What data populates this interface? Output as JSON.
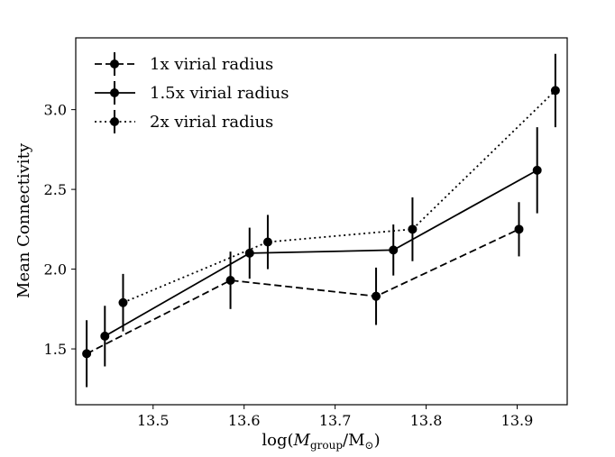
{
  "chart_data": {
    "type": "line",
    "title": "",
    "xlabel_parts": {
      "prefix": "log(",
      "var": "M",
      "sub": "group",
      "slash": "/M",
      "sun": "⊙",
      "suffix": ")"
    },
    "ylabel": "Mean Connectivity",
    "xlim": [
      13.415,
      13.955
    ],
    "ylim": [
      1.15,
      3.45
    ],
    "xticks": [
      13.5,
      13.6,
      13.7,
      13.8,
      13.9
    ],
    "xtick_labels": [
      "13.5",
      "13.6",
      "13.7",
      "13.8",
      "13.9"
    ],
    "yticks": [
      1.5,
      2.0,
      2.5,
      3.0
    ],
    "ytick_labels": [
      "1.5",
      "2.0",
      "2.5",
      "3.0"
    ],
    "legend_position": "top-left",
    "series": [
      {
        "name": "1x virial radius",
        "linestyle": "dashed",
        "x": [
          13.427,
          13.585,
          13.745,
          13.902
        ],
        "y": [
          1.47,
          1.93,
          1.83,
          2.25
        ],
        "yerr": [
          0.21,
          0.18,
          0.18,
          0.17
        ]
      },
      {
        "name": "1.5x virial radius",
        "linestyle": "solid",
        "x": [
          13.447,
          13.606,
          13.764,
          13.922
        ],
        "y": [
          1.58,
          2.1,
          2.12,
          2.62
        ],
        "yerr": [
          0.19,
          0.16,
          0.16,
          0.27
        ]
      },
      {
        "name": "2x virial radius",
        "linestyle": "dotted",
        "x": [
          13.467,
          13.626,
          13.785,
          13.942
        ],
        "y": [
          1.79,
          2.17,
          2.25,
          3.12
        ],
        "yerr": [
          0.18,
          0.17,
          0.2,
          0.23
        ]
      }
    ],
    "colors": {
      "line": "#000000",
      "marker": "#000000",
      "background": "#ffffff"
    }
  }
}
